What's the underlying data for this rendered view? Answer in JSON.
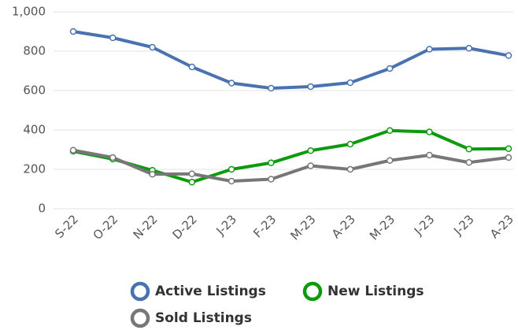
{
  "chart_data": {
    "type": "line",
    "categories": [
      "S-22",
      "O-22",
      "N-22",
      "D-22",
      "J-23",
      "F-23",
      "M-23",
      "A-23",
      "M-23",
      "J-23",
      "J-23",
      "A-23"
    ],
    "series": [
      {
        "name": "Active Listings",
        "color": "#4a72b0",
        "values": [
          900,
          868,
          820,
          720,
          638,
          612,
          620,
          640,
          712,
          810,
          815,
          778
        ]
      },
      {
        "name": "New Listings",
        "color": "#0e9a0e",
        "values": [
          292,
          252,
          195,
          135,
          200,
          233,
          295,
          328,
          397,
          390,
          303,
          305
        ]
      },
      {
        "name": "Sold Listings",
        "color": "#777777",
        "values": [
          297,
          260,
          175,
          177,
          140,
          150,
          218,
          200,
          245,
          272,
          235,
          260
        ]
      }
    ],
    "ylim": [
      0,
      1000
    ],
    "yticks": [
      0,
      200,
      400,
      600,
      800,
      {
        "value": 1000,
        "label": "1,000"
      }
    ],
    "grid": true,
    "legend": "bottom"
  }
}
